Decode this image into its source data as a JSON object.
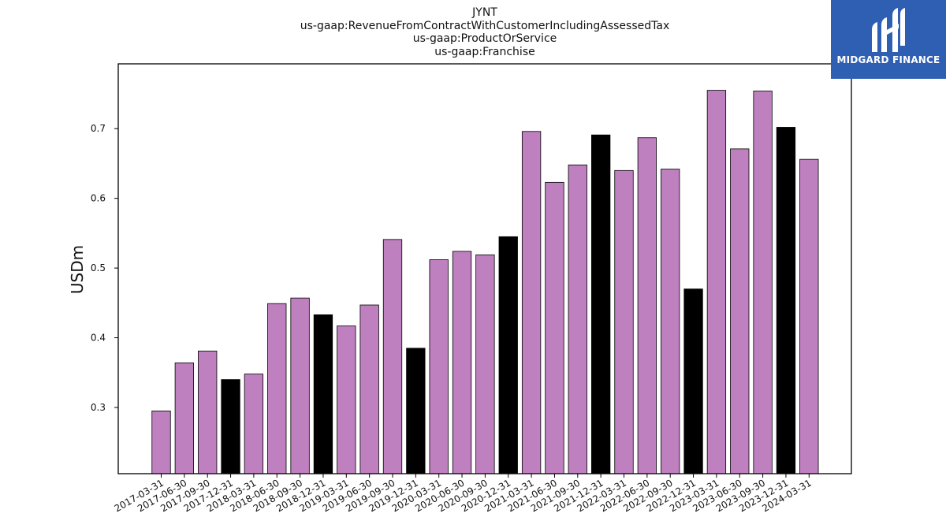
{
  "logo": {
    "text": "MIDGARD FINANCE"
  },
  "chart_data": {
    "type": "bar",
    "title_lines": [
      "JYNT",
      "us-gaap:RevenueFromContractWithCustomerIncludingAssessedTax",
      "us-gaap:ProductOrService",
      "us-gaap:Franchise"
    ],
    "xlabel": "",
    "ylabel": "USDm",
    "ylim": [
      0.205,
      0.793
    ],
    "yticks": [
      0.3,
      0.4,
      0.5,
      0.6,
      0.7
    ],
    "categories": [
      "2017-03-31",
      "2017-06-30",
      "2017-09-30",
      "2017-12-31",
      "2018-03-31",
      "2018-06-30",
      "2018-09-30",
      "2018-12-31",
      "2019-03-31",
      "2019-06-30",
      "2019-09-30",
      "2019-12-31",
      "2020-03-31",
      "2020-06-30",
      "2020-09-30",
      "2020-12-31",
      "2021-03-31",
      "2021-06-30",
      "2021-09-30",
      "2021-12-31",
      "2022-03-31",
      "2022-06-30",
      "2022-09-30",
      "2022-12-31",
      "2023-03-31",
      "2023-06-30",
      "2023-09-30",
      "2023-12-31",
      "2024-03-31"
    ],
    "values": [
      0.295,
      0.364,
      0.381,
      0.34,
      0.348,
      0.449,
      0.457,
      0.433,
      0.417,
      0.447,
      0.541,
      0.385,
      0.512,
      0.524,
      0.519,
      0.545,
      0.696,
      0.623,
      0.648,
      0.691,
      0.64,
      0.687,
      0.642,
      0.47,
      0.755,
      0.671,
      0.754,
      0.702,
      0.656
    ],
    "colors": {
      "quarter": "#bf80bf",
      "year_end": "#000000",
      "edge": "#000000"
    },
    "grid": false
  }
}
